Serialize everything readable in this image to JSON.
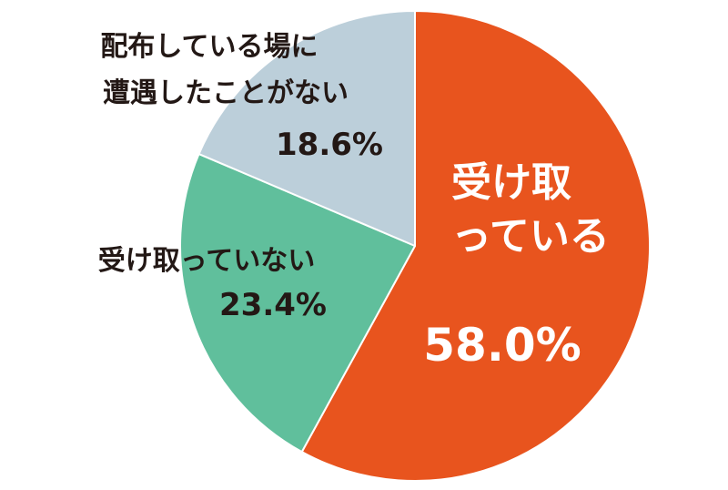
{
  "chart_data": {
    "type": "pie",
    "start": "12 o'clock",
    "direction": "clockwise",
    "slices": [
      {
        "label_lines": [
          "受け取",
          "っている"
        ],
        "value": 58.0,
        "value_label": "58.0%",
        "color": "#E8541E"
      },
      {
        "label_lines": [
          "受け取っていない"
        ],
        "value": 23.4,
        "value_label": "23.4%",
        "color": "#60BF9C"
      },
      {
        "label_lines": [
          "配布している場に",
          "遭遇したことがない"
        ],
        "value": 18.6,
        "value_label": "18.6%",
        "color": "#BCCFDA"
      }
    ]
  }
}
